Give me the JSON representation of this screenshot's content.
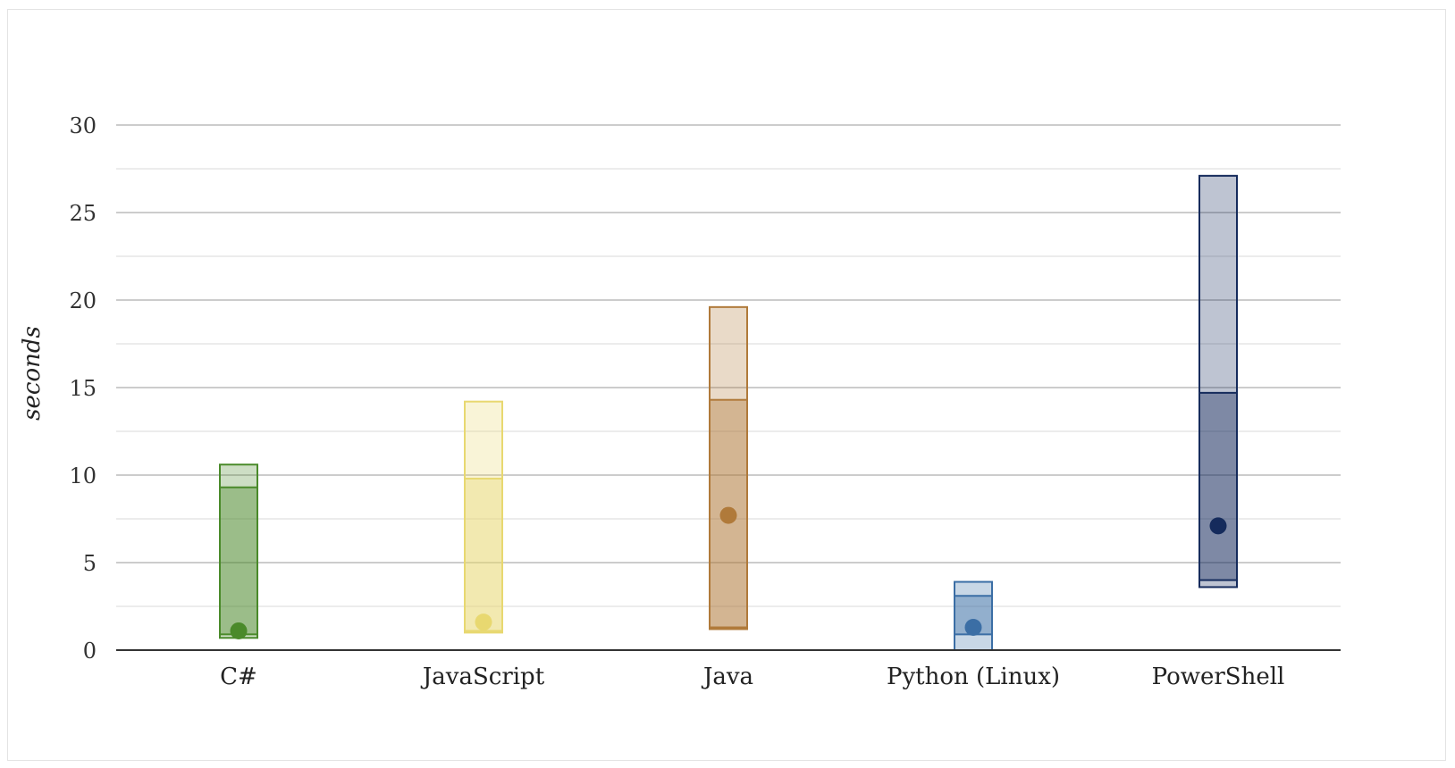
{
  "chart_data": {
    "type": "box",
    "title": "",
    "xlabel": "",
    "ylabel": "seconds",
    "ylim": [
      0,
      30
    ],
    "yticks": [
      0,
      5,
      10,
      15,
      20,
      25,
      30
    ],
    "grid": true,
    "legend": "none",
    "categories": [
      "C#",
      "JavaScript",
      "Java",
      "Python (Linux)",
      "PowerShell"
    ],
    "series": [
      {
        "category": "C#",
        "min": 0.7,
        "q1": 0.9,
        "q3": 9.3,
        "max": 10.6,
        "median": 1.1,
        "color": "#4a8a2a"
      },
      {
        "category": "JavaScript",
        "min": 1.0,
        "q1": 1.1,
        "q3": 9.8,
        "max": 14.2,
        "median": 1.6,
        "color": "#e8d870"
      },
      {
        "category": "Java",
        "min": 1.2,
        "q1": 1.3,
        "q3": 14.3,
        "max": 19.6,
        "median": 7.7,
        "color": "#b07a3a"
      },
      {
        "category": "Python (Linux)",
        "min": 0.0,
        "q1": 0.9,
        "q3": 3.1,
        "max": 3.9,
        "median": 1.3,
        "color": "#3b6ea5"
      },
      {
        "category": "PowerShell",
        "min": 3.6,
        "q1": 4.0,
        "q3": 14.7,
        "max": 27.1,
        "median": 7.1,
        "color": "#152b5c"
      }
    ]
  }
}
